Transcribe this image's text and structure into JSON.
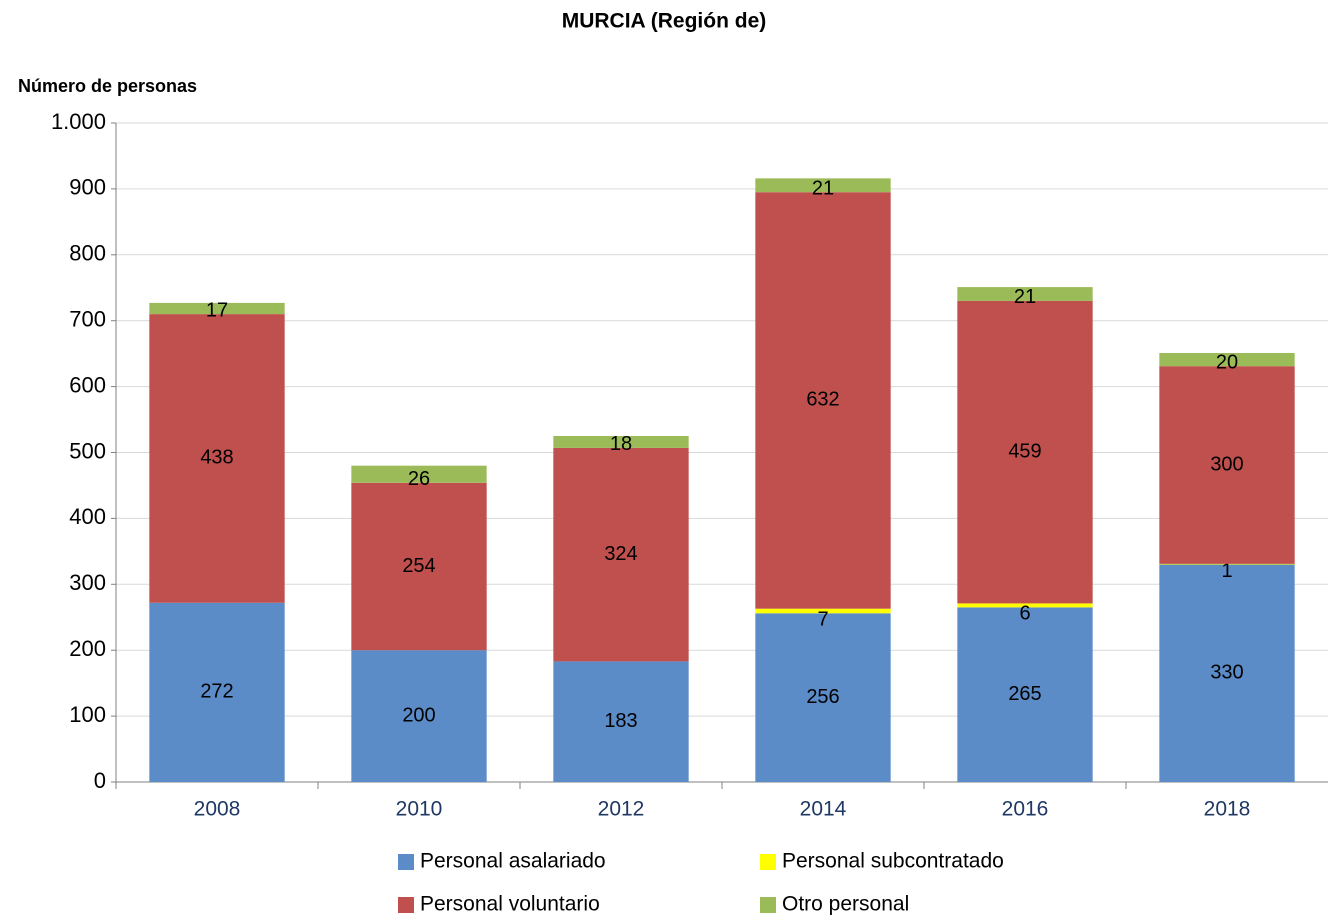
{
  "chart_data": {
    "type": "stacked_bar",
    "title": "MURCIA (Región de)",
    "y_label": "Número de personas",
    "categories": [
      "2008",
      "2010",
      "2012",
      "2014",
      "2016",
      "2018"
    ],
    "series": [
      {
        "name": "Personal asalariado",
        "color": "#5b8cc8",
        "values": [
          272,
          200,
          183,
          256,
          265,
          330
        ]
      },
      {
        "name": "Personal subcontratado",
        "color": "#ffff00",
        "values": [
          null,
          null,
          null,
          7,
          6,
          1
        ]
      },
      {
        "name": "Personal voluntario",
        "color": "#c0504d",
        "values": [
          438,
          254,
          324,
          632,
          459,
          300
        ]
      },
      {
        "name": "Otro personal",
        "color": "#9bbb59",
        "values": [
          17,
          26,
          18,
          21,
          21,
          20
        ]
      }
    ],
    "ylim": [
      0,
      1000
    ],
    "yticks": [
      0,
      100,
      200,
      300,
      400,
      500,
      600,
      700,
      800,
      900,
      {
        "value": 1000,
        "label": "1.000"
      }
    ],
    "grid": true
  }
}
